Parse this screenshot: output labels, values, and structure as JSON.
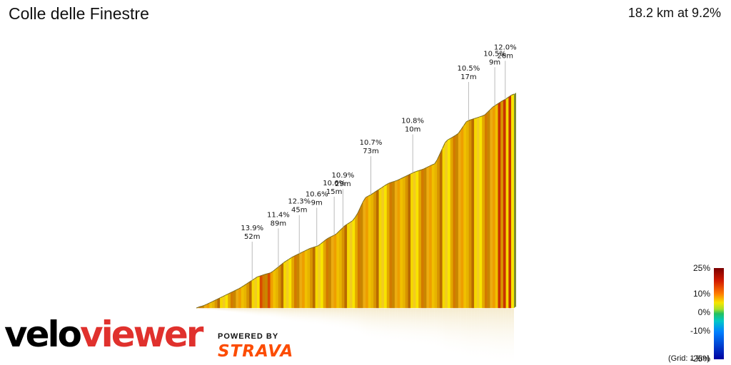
{
  "header": {
    "title": "Colle delle Finestre",
    "summary": "18.2 km at 9.2%"
  },
  "legend": {
    "ticks": [
      "25%",
      "10%",
      "0%",
      "-10%",
      "-25%"
    ],
    "grid_note": "(Grid: 1 km)"
  },
  "branding": {
    "logo_part1": "velo",
    "logo_part2": "viewer",
    "powered_by": "POWERED BY",
    "strava": "STRAVA"
  },
  "chart_data": {
    "type": "area",
    "title": "Colle delle Finestre",
    "subtitle": "18.2 km at 9.2%",
    "distance_km": 18.2,
    "avg_gradient_pct": 9.2,
    "color_scale_pct": [
      -25,
      -10,
      0,
      10,
      25
    ],
    "profile": [
      [
        0,
        0
      ],
      [
        0.5,
        1
      ],
      [
        1.0,
        2.5
      ],
      [
        1.5,
        4
      ],
      [
        2.0,
        5.5
      ],
      [
        2.5,
        7
      ],
      [
        3.0,
        9
      ],
      [
        3.5,
        11
      ],
      [
        4.0,
        12
      ],
      [
        4.3,
        12.5
      ],
      [
        4.6,
        14
      ],
      [
        5.0,
        16
      ],
      [
        5.5,
        18
      ],
      [
        6.0,
        19.5
      ],
      [
        6.5,
        21
      ],
      [
        7.0,
        22
      ],
      [
        7.5,
        24.5
      ],
      [
        8.0,
        26
      ],
      [
        8.5,
        29
      ],
      [
        9.0,
        31
      ],
      [
        9.3,
        34
      ],
      [
        9.5,
        37
      ],
      [
        9.7,
        39
      ],
      [
        10.0,
        40
      ],
      [
        10.5,
        42
      ],
      [
        11.0,
        44
      ],
      [
        11.5,
        45
      ],
      [
        12.0,
        46.5
      ],
      [
        12.5,
        48
      ],
      [
        13.0,
        49
      ],
      [
        13.5,
        50.5
      ],
      [
        13.7,
        51
      ],
      [
        14.0,
        55
      ],
      [
        14.3,
        59
      ],
      [
        14.6,
        60
      ],
      [
        15.0,
        61.5
      ],
      [
        15.5,
        66
      ],
      [
        16.0,
        67
      ],
      [
        16.5,
        68
      ],
      [
        17.0,
        71
      ],
      [
        17.5,
        73
      ],
      [
        17.8,
        74
      ],
      [
        18.0,
        75
      ],
      [
        18.2,
        75.5
      ]
    ],
    "annotations": [
      {
        "km": 3.2,
        "gradient": "13.9%",
        "length": "52m"
      },
      {
        "km": 4.7,
        "gradient": "11.4%",
        "length": "89m"
      },
      {
        "km": 5.9,
        "gradient": "12.3%",
        "length": "45m"
      },
      {
        "km": 6.9,
        "gradient": "10.6%",
        "length": "9m"
      },
      {
        "km": 7.9,
        "gradient": "10.6%",
        "length": "15m"
      },
      {
        "km": 8.4,
        "gradient": "10.9%",
        "length": "29m"
      },
      {
        "km": 10.0,
        "gradient": "10.7%",
        "length": "73m"
      },
      {
        "km": 12.4,
        "gradient": "10.8%",
        "length": "10m"
      },
      {
        "km": 15.6,
        "gradient": "10.5%",
        "length": "17m"
      },
      {
        "km": 17.1,
        "gradient": "10.5%",
        "length": "9m"
      },
      {
        "km": 17.7,
        "gradient": "12.0%",
        "length": "26m"
      }
    ]
  }
}
